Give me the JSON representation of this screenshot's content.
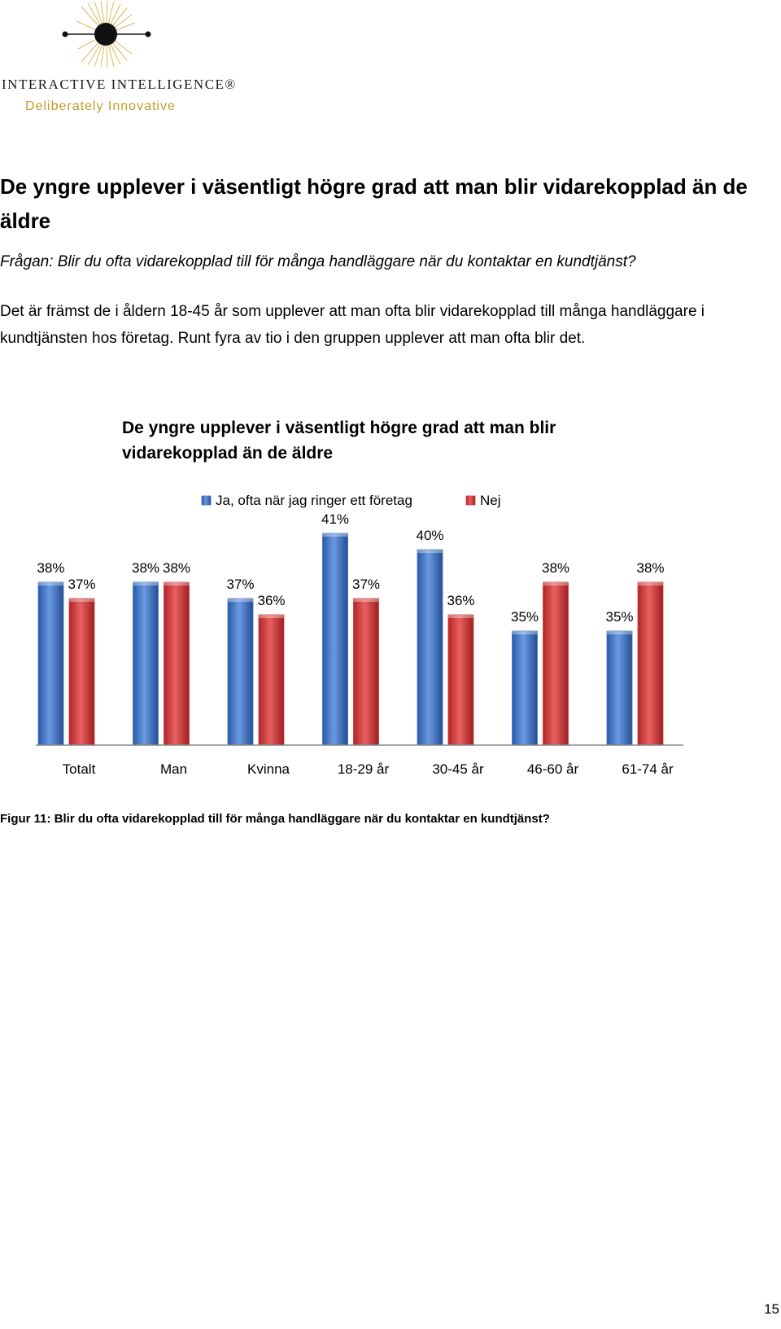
{
  "logo": {
    "name": "INTERACTIVE INTELLIGENCE®",
    "tagline": "Deliberately Innovative",
    "icon": "radiating-lines-logo-icon"
  },
  "heading": "De yngre upplever i väsentligt högre grad att man blir vidarekopplad än de äldre",
  "question": "Frågan: Blir du ofta vidarekopplad till för många handläggare när du kontaktar en kundtjänst?",
  "body": "Det är främst de i åldern 18-45 år som upplever att man ofta blir vidarekopplad till många handläggare i kundtjänsten hos företag. Runt fyra av tio i den gruppen upplever att man ofta blir det.",
  "chart_data": {
    "type": "bar",
    "title_lines": [
      "De yngre upplever i väsentligt högre grad att man blir",
      "vidarekopplad än de äldre"
    ],
    "categories": [
      "Totalt",
      "Man",
      "Kvinna",
      "18-29 år",
      "30-45 år",
      "46-60 år",
      "61-74 år"
    ],
    "series": [
      {
        "name": "Ja, ofta när jag ringer ett företag",
        "color": "#3a73c9",
        "values": [
          38,
          38,
          37,
          41,
          40,
          35,
          35
        ]
      },
      {
        "name": "Nej",
        "color": "#d23a3a",
        "values": [
          37,
          38,
          36,
          37,
          36,
          38,
          38
        ]
      }
    ],
    "unit": "%",
    "ylim": [
      28,
      42
    ],
    "legend_position": "top",
    "grid": false
  },
  "caption": "Figur 11: Blir du ofta vidarekopplad till för många handläggare när du kontaktar en kundtjänst?",
  "page_number": "15"
}
